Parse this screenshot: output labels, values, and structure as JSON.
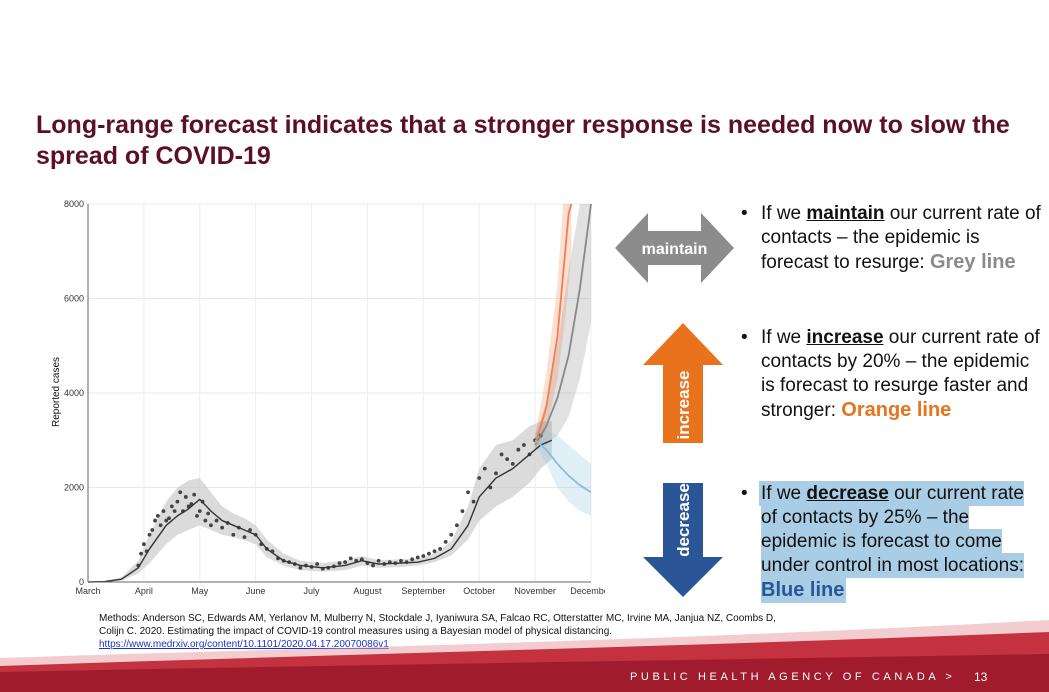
{
  "slide": {
    "title": "Long-range forecast indicates that a stronger response is needed now to slow the spread of COVID-19",
    "page_number": "13",
    "agency": "PUBLIC HEALTH AGENCY OF CANADA >"
  },
  "chart_data": {
    "type": "line",
    "ylabel": "Reported cases",
    "xlabel": "",
    "ylim": [
      0,
      8000
    ],
    "yticks": [
      0,
      2000,
      4000,
      6000,
      8000
    ],
    "xlim": [
      0,
      9
    ],
    "x_tick_labels": [
      "March",
      "April",
      "May",
      "June",
      "July",
      "August",
      "September",
      "October",
      "November",
      "December"
    ],
    "grid": true,
    "colors": {
      "grey": "#888888",
      "orange": "#f08050",
      "blue": "#86bfdc",
      "fit": "#333333",
      "band": "#cccccc"
    },
    "fit_line": {
      "x": [
        0,
        0.3,
        0.6,
        0.9,
        1.1,
        1.4,
        1.6,
        1.8,
        2.0,
        2.2,
        2.4,
        2.6,
        2.8,
        3.0,
        3.2,
        3.5,
        3.8,
        4.2,
        4.6,
        4.9,
        5.2,
        5.6,
        5.9,
        6.2,
        6.5,
        6.8,
        7.0,
        7.3,
        7.6,
        7.9,
        8.1,
        8.3
      ],
      "y": [
        0,
        10,
        60,
        300,
        700,
        1200,
        1400,
        1550,
        1750,
        1500,
        1300,
        1200,
        1100,
        1000,
        700,
        450,
        350,
        300,
        350,
        450,
        380,
        400,
        420,
        500,
        700,
        1200,
        1800,
        2200,
        2400,
        2700,
        2900,
        3000
      ]
    },
    "fit_band": {
      "x": [
        0,
        0.3,
        0.6,
        0.9,
        1.1,
        1.4,
        1.6,
        1.8,
        2.0,
        2.2,
        2.4,
        2.6,
        2.8,
        3.0,
        3.2,
        3.5,
        3.8,
        4.2,
        4.6,
        4.9,
        5.2,
        5.6,
        5.9,
        6.2,
        6.5,
        6.8,
        7.0,
        7.3,
        7.6,
        7.9,
        8.1,
        8.3
      ],
      "lower": [
        0,
        0,
        30,
        180,
        400,
        800,
        1000,
        1100,
        1200,
        1100,
        1000,
        950,
        880,
        800,
        520,
        350,
        250,
        220,
        250,
        350,
        300,
        320,
        350,
        420,
        560,
        900,
        1300,
        1600,
        1800,
        2100,
        2400,
        2600
      ],
      "upper": [
        0,
        20,
        100,
        450,
        1000,
        1700,
        2000,
        2150,
        2200,
        1900,
        1600,
        1450,
        1350,
        1200,
        900,
        600,
        450,
        400,
        450,
        550,
        460,
        480,
        500,
        600,
        860,
        1600,
        2400,
        2900,
        3000,
        3300,
        3400,
        3400
      ]
    },
    "observed_points": {
      "x": [
        0.9,
        0.95,
        1.0,
        1.05,
        1.1,
        1.15,
        1.2,
        1.25,
        1.3,
        1.35,
        1.4,
        1.45,
        1.5,
        1.55,
        1.6,
        1.65,
        1.7,
        1.75,
        1.8,
        1.85,
        1.9,
        1.95,
        2.0,
        2.05,
        2.1,
        2.15,
        2.2,
        2.3,
        2.4,
        2.5,
        2.6,
        2.7,
        2.8,
        2.9,
        3.0,
        3.1,
        3.2,
        3.3,
        3.4,
        3.5,
        3.6,
        3.7,
        3.8,
        3.9,
        4.0,
        4.1,
        4.2,
        4.3,
        4.4,
        4.5,
        4.6,
        4.7,
        4.8,
        4.9,
        5.0,
        5.1,
        5.2,
        5.3,
        5.4,
        5.5,
        5.6,
        5.7,
        5.8,
        5.9,
        6.0,
        6.1,
        6.2,
        6.3,
        6.4,
        6.5,
        6.6,
        6.7,
        6.8,
        6.9,
        7.0,
        7.1,
        7.2,
        7.3,
        7.4,
        7.5,
        7.6,
        7.7,
        7.8,
        7.9,
        8.0,
        8.1
      ],
      "y": [
        350,
        600,
        800,
        650,
        1000,
        1100,
        1300,
        1400,
        1200,
        1500,
        1300,
        1350,
        1600,
        1500,
        1700,
        1900,
        1500,
        1800,
        1600,
        1650,
        1850,
        1400,
        1500,
        1700,
        1300,
        1450,
        1200,
        1300,
        1150,
        1250,
        1000,
        1150,
        950,
        1100,
        1000,
        800,
        700,
        650,
        500,
        450,
        420,
        380,
        300,
        350,
        320,
        380,
        280,
        300,
        330,
        400,
        420,
        500,
        450,
        480,
        400,
        350,
        450,
        380,
        420,
        400,
        450,
        420,
        480,
        520,
        550,
        600,
        650,
        700,
        850,
        1000,
        1200,
        1500,
        1900,
        1700,
        2200,
        2400,
        2000,
        2300,
        2700,
        2600,
        2500,
        2800,
        2900,
        2700,
        3000,
        3100
      ]
    },
    "series": [
      {
        "name": "Grey line",
        "x": [
          8.0,
          8.2,
          8.4,
          8.6,
          8.8,
          9.0
        ],
        "y": [
          2900,
          3300,
          3900,
          4800,
          6200,
          8000
        ],
        "lower": [
          2800,
          2900,
          3100,
          3500,
          4300,
          5500
        ],
        "upper": [
          3100,
          3800,
          5000,
          6600,
          8000,
          8000
        ]
      },
      {
        "name": "Orange line",
        "x": [
          8.0,
          8.2,
          8.4,
          8.5,
          8.6,
          8.65
        ],
        "y": [
          2900,
          3700,
          5200,
          6500,
          7800,
          8000
        ],
        "lower": [
          2800,
          3200,
          4300,
          5200,
          6300,
          7000
        ],
        "upper": [
          3100,
          4400,
          6300,
          8000,
          8000,
          8000
        ]
      },
      {
        "name": "Blue line",
        "x": [
          8.0,
          8.2,
          8.4,
          8.6,
          8.8,
          9.0
        ],
        "y": [
          3000,
          2800,
          2500,
          2250,
          2050,
          1900
        ],
        "lower": [
          2900,
          2500,
          2000,
          1700,
          1500,
          1400
        ],
        "upper": [
          3150,
          3200,
          3100,
          2900,
          2700,
          2500
        ]
      }
    ]
  },
  "arrows": {
    "maintain": {
      "label": "maintain",
      "color": "#8c8c8c"
    },
    "increase": {
      "label": "increase",
      "color": "#e8731c"
    },
    "decrease": {
      "label": "decrease",
      "color": "#2a5597"
    }
  },
  "bullets": {
    "maintain": {
      "pre": "If we ",
      "kw": "maintain",
      "mid": " our current rate of contacts – the epidemic is forecast to resurge: ",
      "tag": "Grey line"
    },
    "increase": {
      "pre": "If we ",
      "kw": "increase",
      "mid": " our current rate of contacts by 20% – the epidemic is forecast to resurge faster and stronger: ",
      "tag": "Orange line"
    },
    "decrease": {
      "pre": "If we ",
      "kw": "decrease",
      "mid": " our current rate of contacts by 25% – the epidemic is forecast to come under control in most locations: ",
      "tag": "Blue line"
    }
  },
  "methods": {
    "text": "Methods: Anderson SC, Edwards AM, Yerlanov M, Mulberry N, Stockdale J, Iyaniwura SA, Falcao RC, Otterstatter MC, Irvine MA, Janjua NZ, Coombs D, Colijn C. 2020. Estimating the impact of COVID-19 control measures using a Bayesian model of physical distancing.",
    "link": "https://www.medrxiv.org/content/10.1101/2020.04.17.20070086v1"
  }
}
